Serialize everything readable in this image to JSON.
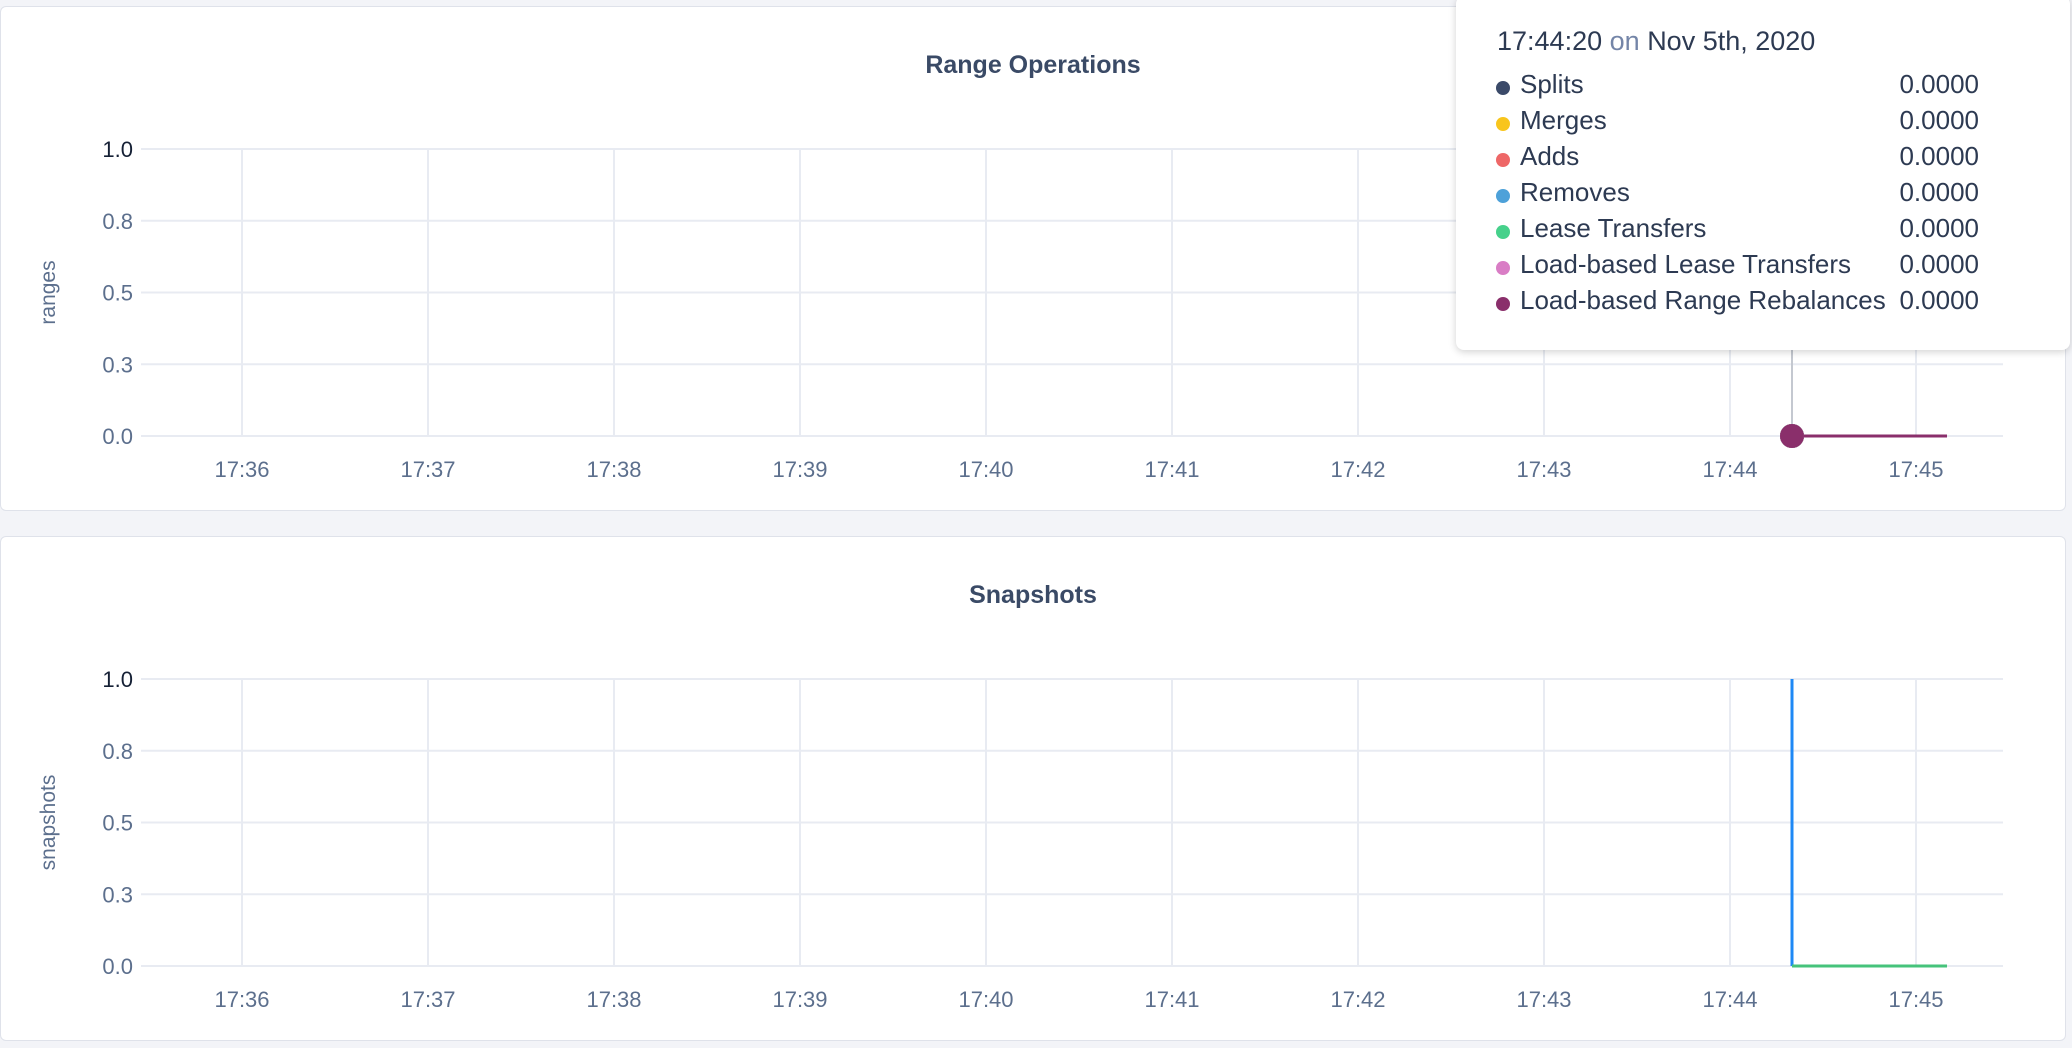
{
  "chart_data": [
    {
      "type": "line",
      "title": "Range Operations",
      "ylabel": "ranges",
      "ylim": [
        0,
        1
      ],
      "y_ticks": [
        "0.0",
        "0.3",
        "0.5",
        "0.8",
        "1.0"
      ],
      "x_ticks": [
        "17:36",
        "17:37",
        "17:38",
        "17:39",
        "17:40",
        "17:41",
        "17:42",
        "17:43",
        "17:44",
        "17:45"
      ],
      "grid": true,
      "series": [
        {
          "name": "Splits",
          "color": "#3b4a69",
          "points": [
            [
              "17:44:20",
              0
            ],
            [
              "17:45:10",
              0
            ]
          ]
        },
        {
          "name": "Merges",
          "color": "#f8c51c",
          "points": [
            [
              "17:44:20",
              0
            ],
            [
              "17:45:10",
              0
            ]
          ]
        },
        {
          "name": "Adds",
          "color": "#ee6767",
          "points": [
            [
              "17:44:20",
              0
            ],
            [
              "17:45:10",
              0
            ]
          ]
        },
        {
          "name": "Removes",
          "color": "#4da1d9",
          "points": [
            [
              "17:44:20",
              0
            ],
            [
              "17:45:10",
              0
            ]
          ]
        },
        {
          "name": "Lease Transfers",
          "color": "#46d18b",
          "points": [
            [
              "17:44:20",
              0
            ],
            [
              "17:45:10",
              0
            ]
          ]
        },
        {
          "name": "Load-based Lease Transfers",
          "color": "#d97dc5",
          "points": [
            [
              "17:44:20",
              0
            ],
            [
              "17:45:10",
              0
            ]
          ]
        },
        {
          "name": "Load-based Range Rebalances",
          "color": "#8a2f6b",
          "points": [
            [
              "17:44:20",
              0
            ],
            [
              "17:45:10",
              0
            ]
          ]
        }
      ],
      "hover": {
        "time": "17:44:20",
        "on": "on",
        "date": "Nov 5th, 2020",
        "values": [
          "0.0000",
          "0.0000",
          "0.0000",
          "0.0000",
          "0.0000",
          "0.0000",
          "0.0000"
        ]
      }
    },
    {
      "type": "line",
      "title": "Snapshots",
      "ylabel": "snapshots",
      "ylim": [
        0,
        1
      ],
      "y_ticks": [
        "0.0",
        "0.3",
        "0.5",
        "0.8",
        "1.0"
      ],
      "x_ticks": [
        "17:36",
        "17:37",
        "17:38",
        "17:39",
        "17:40",
        "17:41",
        "17:42",
        "17:43",
        "17:44",
        "17:45"
      ],
      "grid": true,
      "series": [
        {
          "color": "#1e88f5",
          "points": [
            [
              "17:44:20",
              1
            ],
            [
              "17:44:20",
              0
            ]
          ]
        },
        {
          "color": "#46c37b",
          "points": [
            [
              "17:44:20",
              0
            ],
            [
              "17:45:10",
              0
            ]
          ]
        }
      ]
    }
  ]
}
